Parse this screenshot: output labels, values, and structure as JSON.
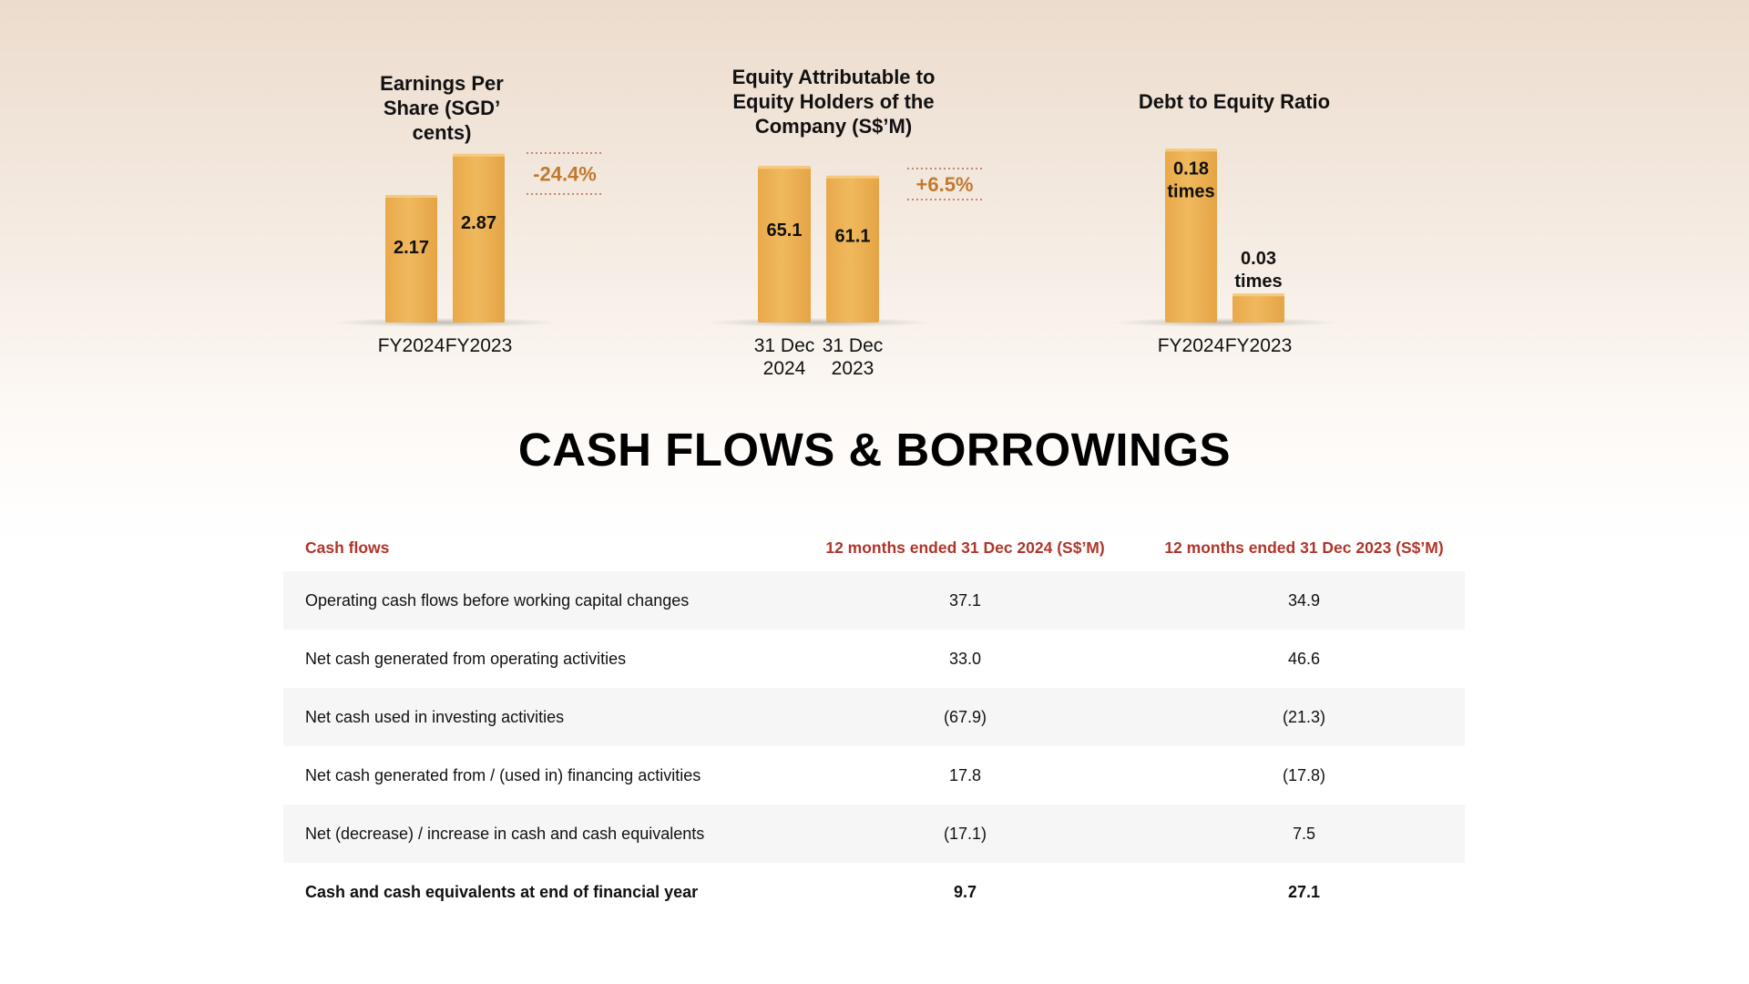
{
  "chart_data": [
    {
      "type": "bar",
      "title": "Earnings Per Share (SGD’ cents)",
      "categories": [
        "FY2024",
        "FY2023"
      ],
      "values": [
        2.17,
        2.87
      ],
      "value_labels": [
        "2.17",
        "2.87"
      ],
      "change_label": "-24.4%",
      "ylim": [
        0,
        3.1
      ],
      "color": "#f0b95d",
      "change_color": "#c07a2f"
    },
    {
      "type": "bar",
      "title": "Equity Attributable to Equity Holders of the Company (S$’M)",
      "categories": [
        "31 Dec 2024",
        "31 Dec 2023"
      ],
      "category_lines": [
        [
          "31 Dec",
          "2024"
        ],
        [
          "31 Dec",
          "2023"
        ]
      ],
      "values": [
        65.1,
        61.1
      ],
      "value_labels": [
        "65.1",
        "61.1"
      ],
      "change_label": "+6.5%",
      "ylim": [
        0,
        69
      ],
      "color": "#f0b95d",
      "change_color": "#c07a2f"
    },
    {
      "type": "bar",
      "title": "Debt to Equity Ratio",
      "categories": [
        "FY2024",
        "FY2023"
      ],
      "values": [
        0.18,
        0.03
      ],
      "value_labels": [
        "0.18\ntimes",
        "0.03\ntimes"
      ],
      "ylim": [
        0,
        0.185
      ],
      "color": "#f0b95d"
    }
  ],
  "section": {
    "title": "CASH FLOWS & BORROWINGS"
  },
  "table": {
    "header": [
      "Cash flows",
      "12 months ended 31 Dec 2024 (S$’M)",
      "12 months ended  31 Dec 2023 (S$’M)"
    ],
    "rows": [
      [
        "Operating cash flows before working capital changes",
        "37.1",
        "34.9"
      ],
      [
        "Net cash generated from operating activities",
        "33.0",
        "46.6"
      ],
      [
        "Net cash used in investing activities",
        "(67.9)",
        "(21.3)"
      ],
      [
        "Net cash generated from / (used in) financing activities",
        "17.8",
        "(17.8)"
      ],
      [
        "Net (decrease) / increase in cash and cash equivalents",
        "(17.1)",
        "7.5"
      ],
      [
        "Cash and cash equivalents at end of financial year",
        "9.7",
        "27.1"
      ]
    ],
    "header_color": "#b0352a",
    "shade_color": "#f6f6f6"
  }
}
